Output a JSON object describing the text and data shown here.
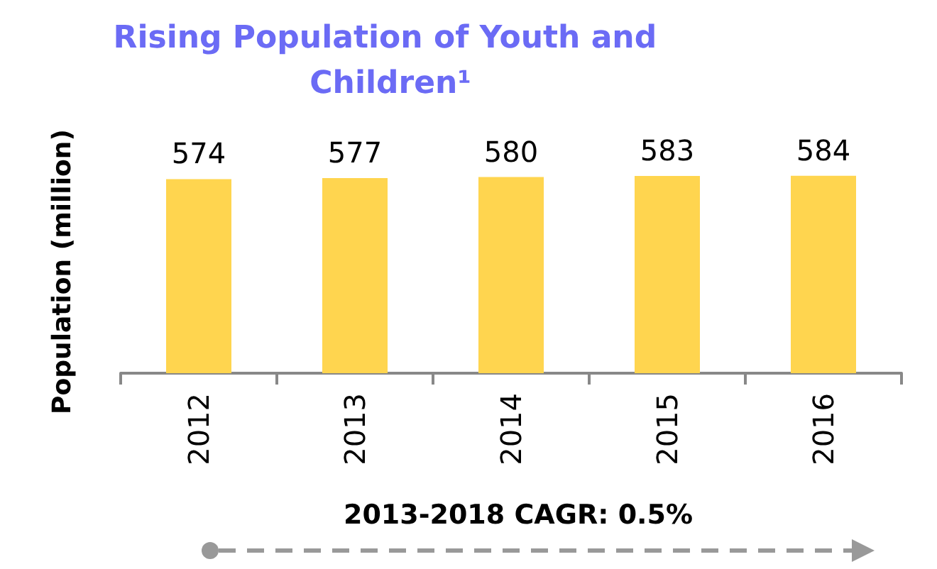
{
  "chart_data": {
    "type": "bar",
    "title": "Rising Population of Youth and Children¹",
    "ylabel": "Population (million)",
    "categories": [
      "2012",
      "2013",
      "2014",
      "2015",
      "2016"
    ],
    "values": [
      574,
      577,
      580,
      583,
      584
    ],
    "color": "#ffd54f",
    "data_labels": true,
    "annotations": [
      "2013-2018 CAGR: 0.5%"
    ]
  }
}
